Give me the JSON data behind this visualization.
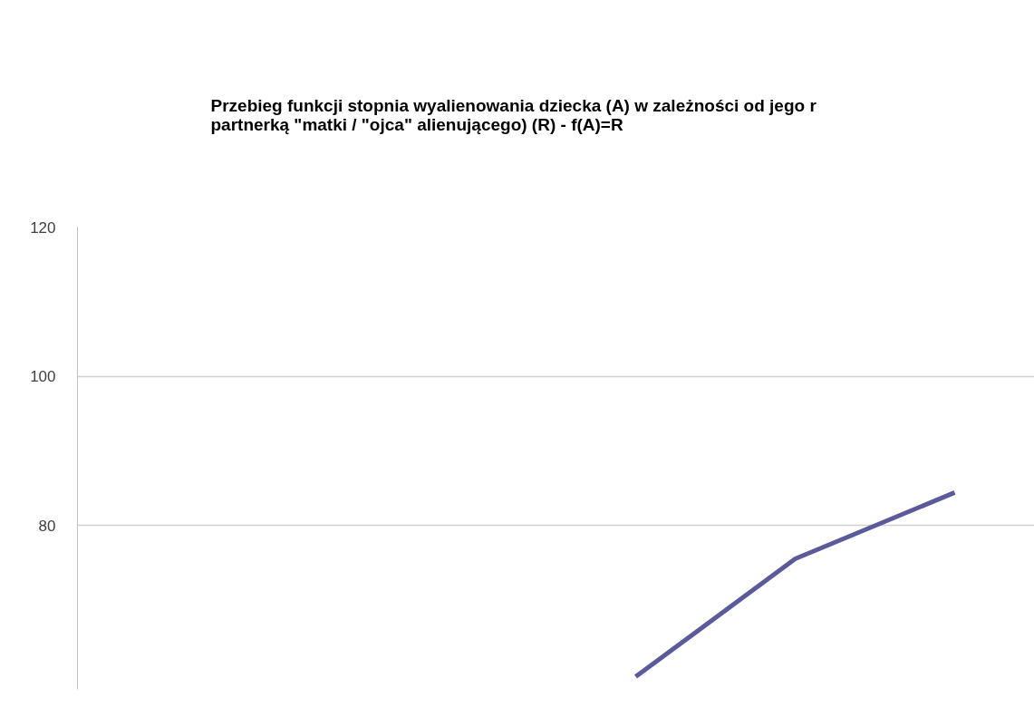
{
  "chart_data": {
    "type": "line",
    "title": "Przebieg funkcji stopnia wyalienowania dziecka (A) w zależności od jego r\npartnerką \"matki / \"ojca\" alienującego) (R) - f(A)=R",
    "categories": [
      null,
      null,
      null,
      null,
      null,
      null
    ],
    "series": [
      {
        "color": "#5b5b9b",
        "values": [
          null,
          null,
          null,
          59.7,
          75.5,
          84.4
        ]
      }
    ],
    "ylim": [
      58,
      120
    ],
    "yticks": [
      80,
      100,
      120
    ],
    "grid": "y",
    "tick_labels": "y",
    "marker": "none",
    "line_style": "solid"
  }
}
